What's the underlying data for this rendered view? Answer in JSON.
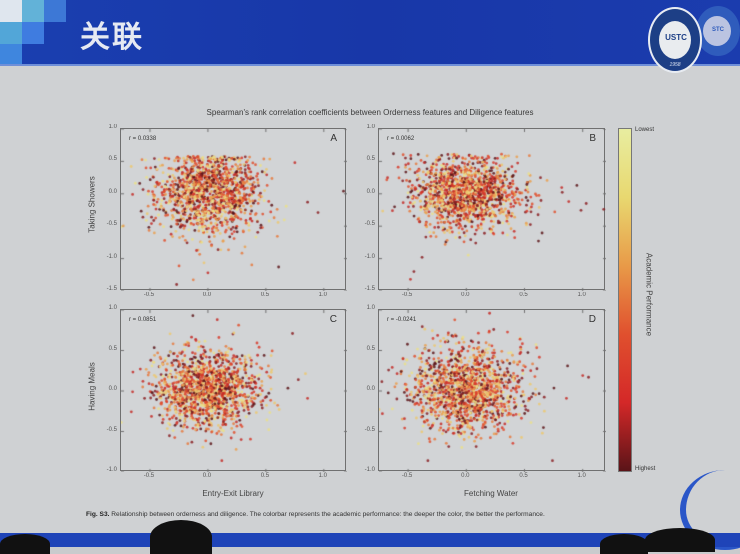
{
  "slide": {
    "title": "关联",
    "logo_main_text": "USTC",
    "logo_main_year": "1958",
    "logo_secondary_text": "STC",
    "colors": {
      "header_blue": "#1a3fb0",
      "background": "#cfd1d3"
    }
  },
  "figure": {
    "title": "Spearman's rank correlation coefficients between Orderness features and Diligence features",
    "caption_label": "Fig. S3.",
    "caption_text": "Relationship between orderness and diligence. The colorbar represents the academic performance: the deeper the color, the better the performance.",
    "colorbar": {
      "title": "Academic Performance",
      "top_label": "Lowest",
      "bottom_label": "Highest",
      "colors": [
        "#e8eda0",
        "#e8d870",
        "#e89a48",
        "#e0502e",
        "#d42828",
        "#5a1418"
      ]
    }
  },
  "chart_data": [
    {
      "type": "scatter",
      "panel": "A",
      "r_label": "r = 0.0338",
      "r": 0.0338,
      "xlabel": "",
      "ylabel": "Taking Showers",
      "xlim": [
        -0.75,
        1.2
      ],
      "ylim": [
        -1.5,
        1.0
      ],
      "xticks": [
        "-0.5",
        "0.0",
        "0.5",
        "1.0"
      ],
      "yticks": [
        "1.0",
        "0.5",
        "0.0",
        "-0.5",
        "-1.0",
        "-1.5"
      ],
      "cluster": {
        "cx": 0.0,
        "cy": 0.0,
        "sx": 0.22,
        "sy": 0.33,
        "n": 1400,
        "ymax": 0.58
      },
      "outliers": [
        [
          1.17,
          0.04
        ],
        [
          0.95,
          -0.29
        ],
        [
          0.86,
          -0.13
        ],
        [
          0.75,
          0.48
        ],
        [
          0.61,
          -1.13
        ],
        [
          -0.27,
          -1.4
        ],
        [
          0.0,
          -1.22
        ],
        [
          -0.65,
          -0.01
        ]
      ]
    },
    {
      "type": "scatter",
      "panel": "B",
      "r_label": "r = 0.0062",
      "r": 0.0062,
      "xlabel": "",
      "ylabel": "",
      "xlim": [
        -0.75,
        1.2
      ],
      "ylim": [
        -1.5,
        1.0
      ],
      "xticks": [
        "-0.5",
        "0.0",
        "0.5",
        "1.0"
      ],
      "yticks": [
        "1.0",
        "0.5",
        "0.0",
        "-0.5",
        "-1.0",
        "-1.5"
      ],
      "cluster": {
        "cx": 0.0,
        "cy": 0.0,
        "sx": 0.23,
        "sy": 0.28,
        "n": 1400,
        "ymax": 0.62
      },
      "outliers": [
        [
          1.18,
          -0.24
        ],
        [
          1.03,
          -0.15
        ],
        [
          0.95,
          0.13
        ],
        [
          0.88,
          -0.12
        ],
        [
          0.62,
          -0.73
        ],
        [
          -0.48,
          -1.32
        ],
        [
          -0.45,
          -1.2
        ],
        [
          -0.38,
          -0.98
        ]
      ]
    },
    {
      "type": "scatter",
      "panel": "C",
      "r_label": "r = 0.0851",
      "r": 0.0851,
      "xlabel": "Entry-Exit Library",
      "ylabel": "Having Meals",
      "xlim": [
        -0.75,
        1.2
      ],
      "ylim": [
        -1.0,
        1.0
      ],
      "xticks": [
        "-0.5",
        "0.0",
        "0.5",
        "1.0"
      ],
      "yticks": [
        "1.0",
        "0.5",
        "0.0",
        "-0.5",
        "-1.0"
      ],
      "cluster": {
        "cx": 0.0,
        "cy": 0.02,
        "sx": 0.22,
        "sy": 0.24,
        "n": 1400,
        "ymax": 0.95
      },
      "outliers": [
        [
          0.86,
          -0.09
        ],
        [
          0.78,
          0.14
        ],
        [
          0.73,
          0.71
        ],
        [
          -0.65,
          -0.01
        ],
        [
          -0.13,
          0.93
        ],
        [
          0.12,
          -0.86
        ]
      ]
    },
    {
      "type": "scatter",
      "panel": "D",
      "r_label": "r = -0.0241",
      "r": -0.0241,
      "xlabel": "Fetching Water",
      "ylabel": "",
      "xlim": [
        -0.75,
        1.2
      ],
      "ylim": [
        -1.0,
        1.0
      ],
      "xticks": [
        "-0.5",
        "0.0",
        "0.5",
        "1.0"
      ],
      "yticks": [
        "1.0",
        "0.5",
        "0.0",
        "-0.5",
        "-1.0"
      ],
      "cluster": {
        "cx": 0.0,
        "cy": 0.02,
        "sx": 0.24,
        "sy": 0.26,
        "n": 1400,
        "ymax": 0.95
      },
      "outliers": [
        [
          1.05,
          0.17
        ],
        [
          1.0,
          0.19
        ],
        [
          0.87,
          0.31
        ],
        [
          0.86,
          -0.09
        ],
        [
          0.74,
          -0.86
        ],
        [
          0.2,
          0.96
        ],
        [
          -0.56,
          0.24
        ],
        [
          -0.33,
          -0.86
        ]
      ]
    }
  ]
}
